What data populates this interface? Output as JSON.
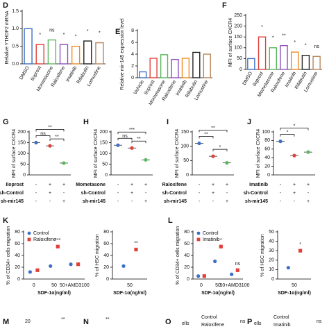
{
  "chart_data": [
    {
      "label": "D",
      "type": "bar",
      "ylabel": "Relative YTHDF2 mRNA",
      "categories": [
        "DMSO",
        "Iloprost",
        "Mometasone",
        "Raloxifene",
        "Imatinib",
        "Rifabutin",
        "Lomustine"
      ],
      "values": [
        1.0,
        0.55,
        0.68,
        0.55,
        0.5,
        0.65,
        0.6
      ],
      "colors": [
        "#3b6fc9",
        "#e0403a",
        "#58b85c",
        "#8e4fbf",
        "#f08a24",
        "#222222",
        "#b8865a"
      ],
      "ylim": [
        0,
        1.5
      ],
      "yticks": [
        {
          "value": 0,
          "label": "0.0"
        },
        {
          "value": 0.5,
          "label": "0.5"
        },
        {
          "value": 1,
          "label": "1.0"
        },
        {
          "value": 1.5,
          "label": "1.5"
        }
      ],
      "annotations": [
        {
          "text": "*",
          "at": 1
        },
        {
          "text": "ns",
          "at": 2
        },
        {
          "text": "*",
          "at": 3
        },
        {
          "text": "*",
          "at": 4
        },
        {
          "text": "*",
          "at": 5
        },
        {
          "text": "*",
          "at": 6
        }
      ]
    },
    {
      "label": "E",
      "type": "bar",
      "ylabel": "Relative mir-145 expression level",
      "categories": [
        "Vehicle",
        "Iloprost",
        "Mometasone",
        "Raloxifene",
        "Imatinib",
        "Rifabutin",
        "Lomustine"
      ],
      "values": [
        1.0,
        3.3,
        3.9,
        3.1,
        3.3,
        4.3,
        4.0
      ],
      "colors": [
        "#3b6fc9",
        "#e0403a",
        "#58b85c",
        "#8e4fbf",
        "#f08a24",
        "#222222",
        "#b8865a"
      ],
      "ylim": [
        0,
        8
      ],
      "yticks": [
        0,
        2,
        4,
        6,
        8
      ]
    },
    {
      "label": "F",
      "type": "bar",
      "ylabel": "MFI of surface CXCR4",
      "categories": [
        "DMSO",
        "Iloprost",
        "Mometasone",
        "Raloxifene",
        "Imatinib",
        "Rifabutin",
        "Lomustine"
      ],
      "values": [
        50,
        150,
        100,
        110,
        80,
        65,
        60
      ],
      "colors": [
        "#3b6fc9",
        "#e0403a",
        "#58b85c",
        "#8e4fbf",
        "#f08a24",
        "#222222",
        "#b8865a"
      ],
      "ylim": [
        0,
        250
      ],
      "yticks": [
        0,
        50,
        100,
        150,
        200,
        250
      ],
      "annotations": [
        {
          "text": "*",
          "at": 1
        },
        {
          "text": "*",
          "at": 2
        },
        {
          "text": "**",
          "at": 3
        },
        {
          "text": "*",
          "at": 4
        },
        {
          "text": "*",
          "at": 5
        },
        {
          "text": "ns",
          "at": 6
        }
      ]
    },
    {
      "label": "G",
      "type": "dot",
      "ylabel": "MFI of surface CXCR4",
      "values": [
        150,
        135,
        55
      ],
      "colors": [
        "#3b6fc9",
        "#e0403a",
        "#58b85c"
      ],
      "ylim": [
        0,
        200
      ],
      "yticks": [
        0,
        50,
        100,
        150,
        200
      ],
      "brackets": [
        {
          "text": "ns",
          "between": [
            0,
            1
          ]
        },
        {
          "text": "**",
          "between": [
            0,
            2
          ]
        },
        {
          "text": "**",
          "between": [
            1,
            2
          ]
        }
      ],
      "table": [
        {
          "name": "Iloprost",
          "signs": [
            "-",
            "+",
            "+"
          ]
        },
        {
          "name": "sh-Control",
          "signs": [
            "-",
            "+",
            "-"
          ]
        },
        {
          "name": "sh-mir145",
          "signs": [
            "-",
            "-",
            "+"
          ]
        }
      ]
    },
    {
      "label": "H",
      "type": "dot",
      "ylabel": "MFI of surface CXCR4",
      "values": [
        138,
        125,
        70
      ],
      "colors": [
        "#3b6fc9",
        "#e0403a",
        "#58b85c"
      ],
      "ylim": [
        0,
        200
      ],
      "yticks": [
        0,
        50,
        100,
        150,
        200
      ],
      "brackets": [
        {
          "text": "ns",
          "between": [
            0,
            1
          ]
        },
        {
          "text": "***",
          "between": [
            0,
            2
          ]
        },
        {
          "text": "**",
          "between": [
            1,
            2
          ]
        }
      ],
      "table": [
        {
          "name": "Mometasone",
          "signs": [
            "-",
            "+",
            "+"
          ]
        },
        {
          "name": "sh-Control",
          "signs": [
            "-",
            "+",
            "-"
          ]
        },
        {
          "name": "sh-mir145",
          "signs": [
            "-",
            "-",
            "+"
          ]
        }
      ]
    },
    {
      "label": "I",
      "type": "dot",
      "ylabel": "MFI of surface CXCR4",
      "values": [
        110,
        65,
        42
      ],
      "colors": [
        "#3b6fc9",
        "#e0403a",
        "#58b85c"
      ],
      "ylim": [
        0,
        150
      ],
      "yticks": [
        0,
        50,
        100,
        150
      ],
      "brackets": [
        {
          "text": "**",
          "between": [
            0,
            1
          ]
        },
        {
          "text": "**",
          "between": [
            0,
            2
          ]
        },
        {
          "text": "*",
          "between": [
            1,
            2
          ]
        }
      ],
      "table": [
        {
          "name": "Raloxifene",
          "signs": [
            "-",
            "+",
            "+"
          ]
        },
        {
          "name": "sh-Control",
          "signs": [
            "-",
            "+",
            "-"
          ]
        },
        {
          "name": "sh-mir145",
          "signs": [
            "-",
            "-",
            "+"
          ]
        }
      ]
    },
    {
      "label": "J",
      "type": "dot",
      "ylabel": "MFI of surface CXCR4",
      "values": [
        78,
        45,
        53
      ],
      "colors": [
        "#3b6fc9",
        "#e0403a",
        "#58b85c"
      ],
      "ylim": [
        0,
        100
      ],
      "yticks": [
        0,
        20,
        40,
        60,
        80,
        100
      ],
      "brackets": [
        {
          "text": "*",
          "between": [
            0,
            1
          ]
        },
        {
          "text": "*",
          "between": [
            0,
            2
          ]
        }
      ],
      "table": [
        {
          "name": "Imatinib",
          "signs": [
            "-",
            "+",
            "+"
          ]
        },
        {
          "name": "sh-Control",
          "signs": [
            "-",
            "+",
            "-"
          ]
        },
        {
          "name": "sh-mir145",
          "signs": [
            "-",
            "-",
            "+"
          ]
        }
      ]
    },
    {
      "label": "K",
      "type": "scatter",
      "ylabel": "% of CD34+ cells migration",
      "xlabel": "SDF-1α(ng/ml)",
      "categories": [
        "0",
        "50",
        "50+AMD3100"
      ],
      "series": [
        {
          "name": "Control",
          "color": "#3b6fc9",
          "values": [
            12,
            22,
            25
          ]
        },
        {
          "name": "Raloxifene",
          "color": "#e0403a",
          "values": [
            15,
            55,
            25
          ]
        }
      ],
      "ylim": [
        0,
        80
      ],
      "yticks": [
        0,
        20,
        40,
        60,
        80
      ],
      "annotations": [
        {
          "text": "***",
          "at": 1
        }
      ]
    },
    {
      "type": "scatter",
      "ylabel": "% of HSC migration",
      "xlabel": "SDF-1α(ng/ml)",
      "categories": [
        "50"
      ],
      "series": [
        {
          "color": "#3b6fc9",
          "values": [
            22
          ]
        },
        {
          "color": "#e0403a",
          "values": [
            50
          ]
        }
      ],
      "ylim": [
        0,
        80
      ],
      "yticks": [
        0,
        20,
        40,
        60,
        80
      ],
      "annotations": [
        {
          "text": "**",
          "at": 0
        }
      ]
    },
    {
      "label": "L",
      "type": "scatter",
      "ylabel": "% of CD34+ cells migration",
      "xlabel": "SDF-1α(ng/ml)",
      "categories": [
        "0",
        "50",
        "50+AMD3100"
      ],
      "series": [
        {
          "name": "Control",
          "color": "#3b6fc9",
          "values": [
            5,
            30,
            8
          ]
        },
        {
          "name": "Imatinib",
          "color": "#e0403a",
          "values": [
            5,
            55,
            15
          ]
        }
      ],
      "ylim": [
        0,
        80
      ],
      "yticks": [
        0,
        20,
        40,
        60,
        80
      ],
      "annotations": [
        {
          "text": "*",
          "at": 1
        },
        {
          "text": "ns",
          "at": 2
        }
      ]
    },
    {
      "type": "scatter",
      "ylabel": "% of HSC migration",
      "xlabel": "SDF-1α(ng/ml)",
      "categories": [
        "50"
      ],
      "series": [
        {
          "color": "#3b6fc9",
          "values": [
            12
          ]
        },
        {
          "color": "#e0403a",
          "values": [
            30
          ]
        }
      ],
      "ylim": [
        0,
        50
      ],
      "yticks": [
        0,
        10,
        20,
        30,
        40,
        50
      ],
      "annotations": [
        {
          "text": "*",
          "at": 0
        }
      ]
    }
  ],
  "fragments": [
    "M",
    "20",
    "**",
    "N",
    "**",
    "O",
    "ells",
    "Control",
    "Raloxifene",
    "ns",
    "P",
    "ells",
    "Control",
    "Imatinib",
    "ns"
  ]
}
